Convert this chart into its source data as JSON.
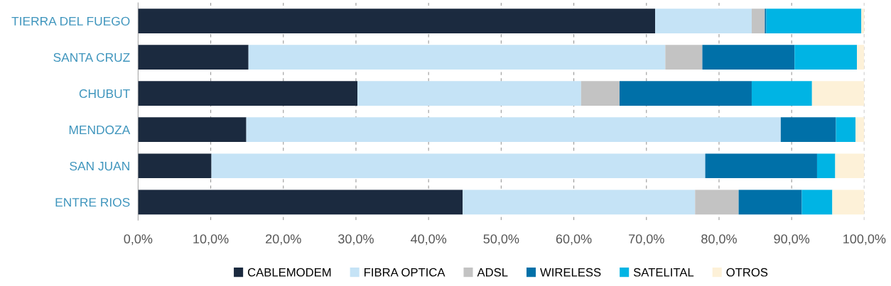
{
  "chart_data": {
    "type": "bar",
    "orientation": "horizontal",
    "stacked": true,
    "categories": [
      "TIERRA DEL FUEGO",
      "SANTA CRUZ",
      "CHUBUT",
      "MENDOZA",
      "SAN JUAN",
      "ENTRE RIOS"
    ],
    "series": [
      {
        "name": "CABLEMODEM",
        "color": "#1b2a3f",
        "values": [
          71.2,
          15.2,
          30.2,
          14.9,
          10.1,
          44.7
        ]
      },
      {
        "name": "FIBRA OPTICA",
        "color": "#c5e3f6",
        "values": [
          13.3,
          57.4,
          30.8,
          73.6,
          68.0,
          32.0
        ]
      },
      {
        "name": "ADSL",
        "color": "#c3c3c3",
        "values": [
          1.8,
          5.1,
          5.3,
          0,
          0,
          6.0
        ]
      },
      {
        "name": "WIRELESS",
        "color": "#0070a8",
        "values": [
          0.2,
          12.7,
          18.2,
          7.6,
          15.4,
          8.7
        ]
      },
      {
        "name": "SATELITAL",
        "color": "#00b4e4",
        "values": [
          13.1,
          8.6,
          8.3,
          2.7,
          2.5,
          4.2
        ]
      },
      {
        "name": "OTROS",
        "color": "#fdf1d8",
        "values": [
          0.4,
          1.0,
          7.2,
          1.2,
          4.0,
          4.4
        ]
      }
    ],
    "xlim": [
      0,
      100
    ],
    "xticks": [
      {
        "value": 0,
        "label": "0,0%"
      },
      {
        "value": 10,
        "label": "10,0%"
      },
      {
        "value": 20,
        "label": "20,0%"
      },
      {
        "value": 30,
        "label": "30,0%"
      },
      {
        "value": 40,
        "label": "40,0%"
      },
      {
        "value": 50,
        "label": "50,0%"
      },
      {
        "value": 60,
        "label": "60,0%"
      },
      {
        "value": 70,
        "label": "70,0%"
      },
      {
        "value": 80,
        "label": "80,0%"
      },
      {
        "value": 90,
        "label": "90,0%"
      },
      {
        "value": 100,
        "label": "100,0%"
      }
    ],
    "grid": "x",
    "legend": "bottom"
  }
}
